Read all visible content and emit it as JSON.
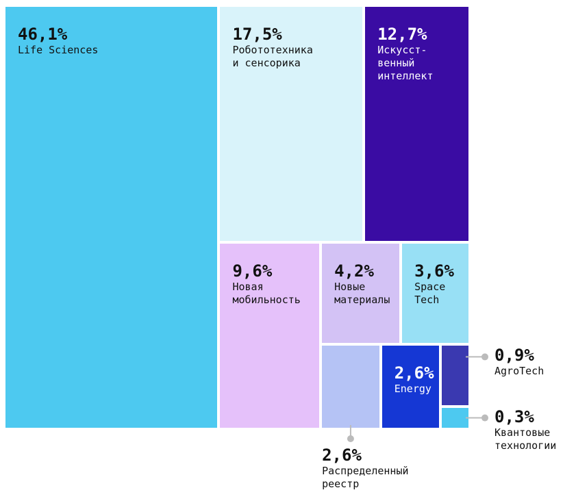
{
  "chart_data": {
    "type": "treemap",
    "items": [
      {
        "name": "Life Sciences",
        "value": 46.1,
        "value_label": "46,1%",
        "color": "#4dc9f0"
      },
      {
        "name": "Робототехника\nи сенсорика",
        "value": 17.5,
        "value_label": "17,5%",
        "color": "#d9f3fa"
      },
      {
        "name": "Искусст-\nвенный\nинтеллект",
        "value": 12.7,
        "value_label": "12,7%",
        "color": "#3a0ca3"
      },
      {
        "name": "Новая\nмобильность",
        "value": 9.6,
        "value_label": "9,6%",
        "color": "#e5c1fa"
      },
      {
        "name": "Новые\nматериалы",
        "value": 4.2,
        "value_label": "4,2%",
        "color": "#d3c2f5"
      },
      {
        "name": "Space\nTech",
        "value": 3.6,
        "value_label": "3,6%",
        "color": "#98e0f5"
      },
      {
        "name": "Распределенный\nреестр",
        "value": 2.6,
        "value_label": "2,6%",
        "color": "#b5c3f5"
      },
      {
        "name": "Energy",
        "value": 2.6,
        "value_label": "2,6%",
        "color": "#1537d4"
      },
      {
        "name": "AgroTech",
        "value": 0.9,
        "value_label": "0,9%",
        "color": "#3a39b0"
      },
      {
        "name": "Квантовые\nтехнологии",
        "value": 0.3,
        "value_label": "0,3%",
        "color": "#4dc9f0"
      }
    ]
  }
}
